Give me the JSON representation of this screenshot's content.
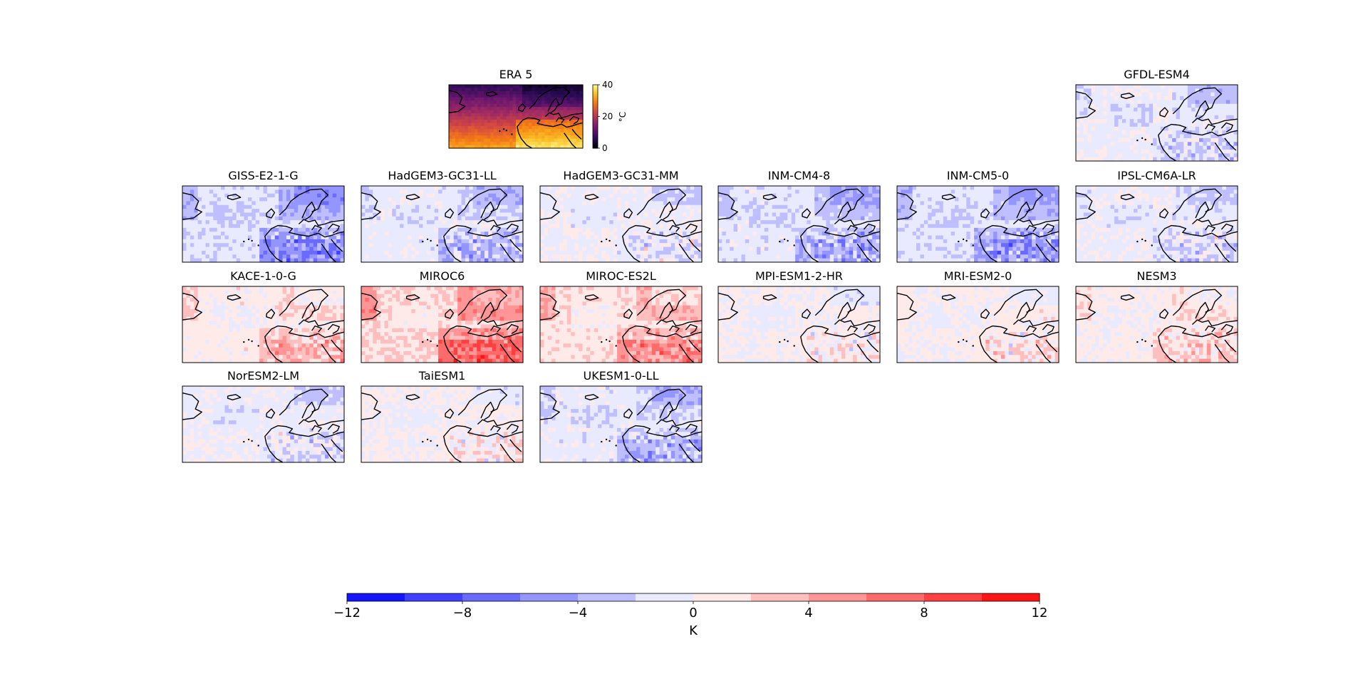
{
  "chart_data": {
    "type": "heatmap",
    "era5": {
      "title": "ERA 5",
      "colorbar": {
        "unit": "°C",
        "min": 0,
        "max": 40,
        "ticks": [
          "0",
          "20",
          "40"
        ]
      }
    },
    "panels": [
      {
        "name": "GFDL-ESM4",
        "bias": -1.0
      },
      {
        "name": "GISS-E2-1-G",
        "bias": -2.5
      },
      {
        "name": "HadGEM3-GC31-LL",
        "bias": -1.5
      },
      {
        "name": "HadGEM3-GC31-MM",
        "bias": -0.5
      },
      {
        "name": "INM-CM4-8",
        "bias": -2.0
      },
      {
        "name": "INM-CM5-0",
        "bias": -2.2
      },
      {
        "name": "IPSL-CM6A-LR",
        "bias": -0.8
      },
      {
        "name": "KACE-1-0-G",
        "bias": 1.5
      },
      {
        "name": "MIROC6",
        "bias": 3.5
      },
      {
        "name": "MIROC-ES2L",
        "bias": 2.5
      },
      {
        "name": "MPI-ESM1-2-HR",
        "bias": 0.3
      },
      {
        "name": "MRI-ESM2-0",
        "bias": 0.6
      },
      {
        "name": "NESM3",
        "bias": 1.2
      },
      {
        "name": "NorESM2-LM",
        "bias": -0.6
      },
      {
        "name": "TaiESM1",
        "bias": 0.4
      },
      {
        "name": "UKESM1-0-LL",
        "bias": -1.6
      }
    ],
    "colorbar": {
      "label": "K",
      "min": -12,
      "max": 12,
      "levels": [
        -12,
        -10,
        -8,
        -6,
        -4,
        -2,
        0,
        2,
        4,
        6,
        8,
        10,
        12
      ],
      "ticks": [
        "−12",
        "−8",
        "−4",
        "0",
        "4",
        "8",
        "12"
      ],
      "cmap": "bwr"
    }
  }
}
